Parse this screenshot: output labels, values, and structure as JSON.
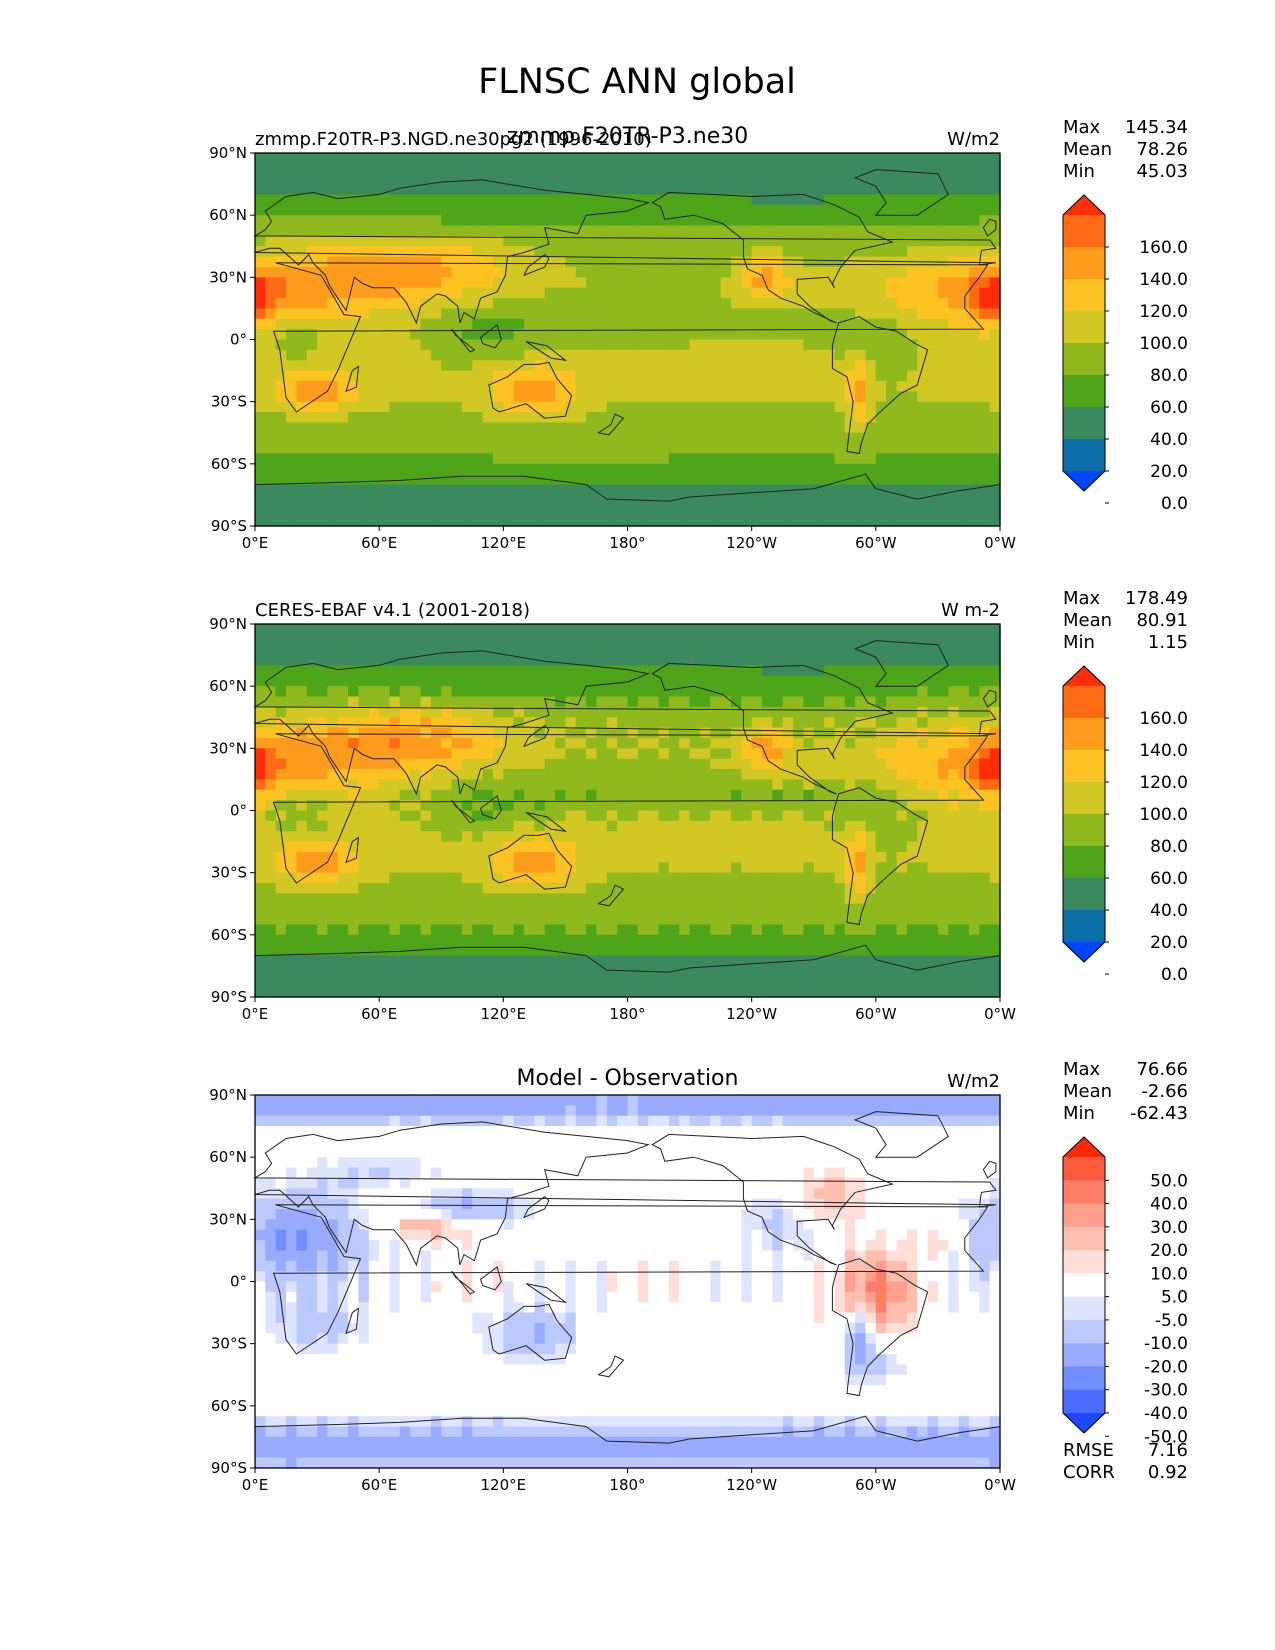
{
  "figure": {
    "title": "FLNSC ANN global"
  },
  "chart_data": [
    {
      "type": "heatmap",
      "title_left": "zmmp.F20TR-P3.NGD.ne30pg2 (1996-2010)",
      "title_center": "zmmp.F20TR-P3.ne30",
      "units": "W/m2",
      "stats": [
        {
          "label": "Max",
          "value": "145.34"
        },
        {
          "label": "Mean",
          "value": "78.26"
        },
        {
          "label": "Min",
          "value": "45.03"
        }
      ],
      "x_ticks": [
        "0°E",
        "60°E",
        "120°E",
        "180°",
        "120°W",
        "60°W",
        "0°W"
      ],
      "y_ticks": [
        "90°N",
        "60°N",
        "30°N",
        "0°",
        "30°S",
        "60°S",
        "90°S"
      ],
      "xlim": [
        0,
        360
      ],
      "ylim": [
        -90,
        90
      ],
      "colorbar": {
        "labels": [
          "160.0",
          "140.0",
          "120.0",
          "100.0",
          "80.0",
          "60.0",
          "40.0",
          "20.0",
          "0.0"
        ],
        "colors": [
          "#ff2d0a",
          "#ff6a14",
          "#ff9c1c",
          "#fdc322",
          "#d2c723",
          "#8fb91d",
          "#4ea51a",
          "#3a8a5e",
          "#0a6ea8",
          "#0046ff"
        ]
      }
    },
    {
      "type": "heatmap",
      "title_left": "CERES-EBAF v4.1 (2001-2018)",
      "title_center": "",
      "units": "W m-2",
      "stats": [
        {
          "label": "Max",
          "value": "178.49"
        },
        {
          "label": "Mean",
          "value": "80.91"
        },
        {
          "label": "Min",
          "value": "1.15"
        }
      ],
      "x_ticks": [
        "0°E",
        "60°E",
        "120°E",
        "180°",
        "120°W",
        "60°W",
        "0°W"
      ],
      "y_ticks": [
        "90°N",
        "60°N",
        "30°N",
        "0°",
        "30°S",
        "60°S",
        "90°S"
      ],
      "xlim": [
        0,
        360
      ],
      "ylim": [
        -90,
        90
      ],
      "colorbar": {
        "labels": [
          "160.0",
          "140.0",
          "120.0",
          "100.0",
          "80.0",
          "60.0",
          "40.0",
          "20.0",
          "0.0"
        ],
        "colors": [
          "#ff2d0a",
          "#ff6a14",
          "#ff9c1c",
          "#fdc322",
          "#d2c723",
          "#8fb91d",
          "#4ea51a",
          "#3a8a5e",
          "#0a6ea8",
          "#0046ff"
        ]
      }
    },
    {
      "type": "heatmap",
      "title_left": "",
      "title_center": "Model - Observation",
      "units": "W/m2",
      "stats": [
        {
          "label": "Max",
          "value": "76.66"
        },
        {
          "label": "Mean",
          "value": "-2.66"
        },
        {
          "label": "Min",
          "value": "-62.43"
        }
      ],
      "bottom_stats": [
        {
          "label": "RMSE",
          "value": "7.16"
        },
        {
          "label": "CORR",
          "value": "0.92"
        }
      ],
      "x_ticks": [
        "0°E",
        "60°E",
        "120°E",
        "180°",
        "120°W",
        "60°W",
        "0°W"
      ],
      "y_ticks": [
        "90°N",
        "60°N",
        "30°N",
        "0°",
        "30°S",
        "60°S",
        "90°S"
      ],
      "xlim": [
        0,
        360
      ],
      "ylim": [
        -90,
        90
      ],
      "colorbar": {
        "labels": [
          "50.0",
          "40.0",
          "30.0",
          "20.0",
          "10.0",
          "5.0",
          "-5.0",
          "-10.0",
          "-20.0",
          "-30.0",
          "-40.0",
          "-50.0"
        ],
        "colors": [
          "#ff2a0a",
          "#ff5a3c",
          "#ff7e66",
          "#ff9f8c",
          "#ffbeb0",
          "#ffdfd8",
          "#ffffff",
          "#dfe5ff",
          "#bcc9ff",
          "#98abff",
          "#728dff",
          "#4a6cff",
          "#1e48ff"
        ]
      }
    }
  ]
}
